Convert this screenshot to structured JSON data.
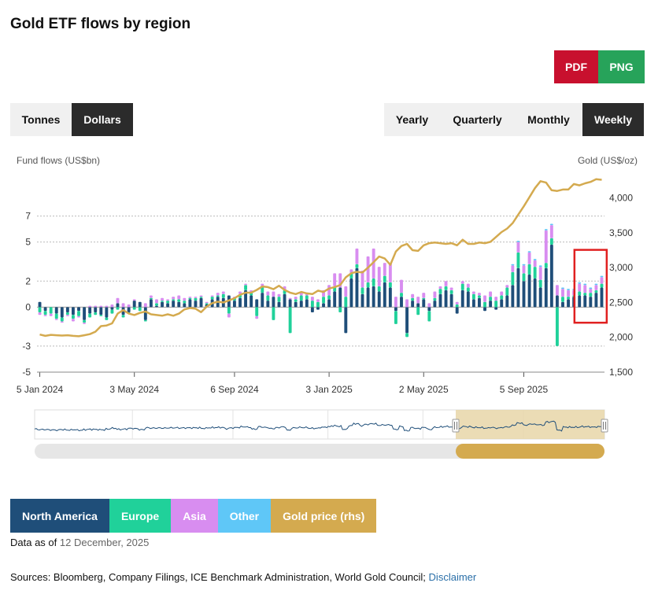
{
  "title": "Gold ETF flows by region",
  "download": {
    "pdf": "PDF",
    "png": "PNG"
  },
  "unit_toggle": {
    "tonnes": "Tonnes",
    "dollars": "Dollars",
    "selected": "Dollars"
  },
  "period_toggle": {
    "yearly": "Yearly",
    "quarterly": "Quarterly",
    "monthly": "Monthly",
    "weekly": "Weekly",
    "selected": "Weekly"
  },
  "legend": {
    "north_america": "North America",
    "europe": "Europe",
    "asia": "Asia",
    "other": "Other",
    "gold_price": "Gold price (rhs)"
  },
  "colors": {
    "north_america": "#1f4e79",
    "europe": "#20d19a",
    "asia": "#d88df0",
    "other": "#5fc7f7",
    "gold_price": "#d4aa4f",
    "highlight": "#e02020"
  },
  "data_as_of": {
    "label": "Data as of",
    "value": "12 December, 2025"
  },
  "sources": {
    "text": "Sources: Bloomberg, Company Filings, ICE Benchmark Administration, World Gold Council;",
    "disclaimer": "Disclaimer"
  },
  "chart_data": {
    "type": "bar",
    "ylabel": "Fund flows (US$bn)",
    "y2label": "Gold (US$/oz)",
    "ylim": [
      -5,
      10
    ],
    "y_ticks": [
      -5,
      -3,
      0,
      2,
      5,
      7
    ],
    "y2lim": [
      1500,
      4300
    ],
    "y2_ticks": [
      "1,500",
      "2,000",
      "2,500",
      "3,000",
      "3,500",
      "4,000"
    ],
    "y2_tick_values": [
      1500,
      2000,
      2500,
      3000,
      3500,
      4000
    ],
    "x_ticks": [
      "5 Jan 2024",
      "3 May 2024",
      "6 Sep 2024",
      "3 Jan 2025",
      "2 May 2025",
      "5 Sep 2025"
    ],
    "x_tick_week_index": [
      0,
      17,
      35,
      52,
      69,
      87
    ],
    "grid": "horizontal",
    "week_count": 102,
    "gold_price": [
      2040,
      2020,
      2035,
      2030,
      2025,
      2030,
      2020,
      2015,
      2030,
      2045,
      2080,
      2160,
      2170,
      2200,
      2340,
      2390,
      2340,
      2320,
      2350,
      2370,
      2330,
      2320,
      2310,
      2330,
      2310,
      2340,
      2400,
      2420,
      2410,
      2360,
      2440,
      2490,
      2510,
      2500,
      2530,
      2560,
      2610,
      2640,
      2640,
      2680,
      2730,
      2720,
      2690,
      2740,
      2680,
      2640,
      2620,
      2650,
      2630,
      2620,
      2670,
      2650,
      2700,
      2720,
      2750,
      2860,
      2920,
      2940,
      2930,
      3000,
      3080,
      3160,
      3130,
      3040,
      3230,
      3310,
      3340,
      3250,
      3240,
      3320,
      3350,
      3360,
      3350,
      3340,
      3350,
      3320,
      3400,
      3340,
      3340,
      3360,
      3350,
      3370,
      3440,
      3510,
      3560,
      3640,
      3760,
      3880,
      4010,
      4140,
      4240,
      4220,
      4110,
      4100,
      4120,
      4120,
      4200,
      4180,
      4210,
      4230,
      4270,
      4260
    ],
    "series": [
      {
        "name": "North America",
        "values": [
          0.4,
          -0.3,
          0.0,
          -0.5,
          -0.8,
          -0.4,
          -0.6,
          -0.3,
          -1.0,
          -0.5,
          -0.4,
          -0.6,
          -0.8,
          -0.2,
          0.3,
          -0.6,
          -0.4,
          0.5,
          0.4,
          -1.0,
          0.6,
          0.1,
          0.4,
          0.3,
          0.5,
          0.4,
          0.3,
          0.6,
          0.5,
          0.7,
          0.2,
          0.6,
          0.8,
          0.7,
          0.9,
          0.5,
          0.7,
          1.3,
          0.9,
          0.6,
          1.1,
          0.5,
          0.8,
          0.4,
          1.0,
          0.6,
          0.4,
          0.5,
          0.6,
          -0.4,
          -0.2,
          0.3,
          0.6,
          1.2,
          1.5,
          -2.0,
          2.2,
          3.0,
          1.0,
          1.5,
          1.6,
          1.2,
          1.9,
          1.5,
          -0.3,
          0.8,
          -2.0,
          0.5,
          0.3,
          0.6,
          -0.3,
          0.5,
          1.0,
          1.3,
          1.0,
          -0.5,
          1.3,
          1.2,
          0.6,
          0.7,
          -0.3,
          0.5,
          -0.2,
          0.6,
          0.9,
          1.7,
          3.0,
          2.0,
          2.5,
          2.2,
          1.5,
          3.0,
          4.8,
          0.9,
          0.4,
          0.6,
          0.8,
          0.9,
          0.9,
          0.8,
          1.1,
          1.5
        ]
      },
      {
        "name": "Europe",
        "values": [
          -0.4,
          -0.3,
          -0.5,
          -0.4,
          -0.3,
          -0.2,
          -0.3,
          -0.4,
          -0.2,
          -0.3,
          -0.2,
          -0.1,
          -0.2,
          -0.3,
          -0.2,
          -0.2,
          -0.1,
          -0.2,
          -0.3,
          -0.1,
          0.1,
          0.2,
          0.1,
          0.2,
          0.1,
          0.2,
          0.2,
          0.1,
          0.2,
          0.1,
          0.1,
          0.2,
          0.1,
          0.3,
          -0.5,
          0.2,
          0.3,
          0.4,
          0.2,
          -0.7,
          0.5,
          0.4,
          -1.0,
          0.4,
          0.3,
          -2.0,
          0.2,
          0.4,
          0.3,
          0.5,
          0.4,
          0.5,
          0.3,
          0.4,
          -0.4,
          0.8,
          0.4,
          0.3,
          0.5,
          0.4,
          0.6,
          0.4,
          0.5,
          0.4,
          -1.0,
          0.3,
          -0.3,
          0.2,
          -0.6,
          0.1,
          -0.8,
          0.2,
          0.4,
          0.3,
          0.3,
          0.2,
          0.5,
          0.3,
          0.4,
          0.2,
          0.4,
          0.3,
          0.5,
          0.3,
          0.6,
          1.0,
          1.2,
          0.6,
          0.8,
          0.9,
          0.6,
          0.4,
          0.5,
          -3.0,
          0.4,
          0.2,
          0.1,
          0.3,
          0.2,
          0.3,
          0.2,
          0.3
        ]
      },
      {
        "name": "Asia",
        "values": [
          -0.2,
          -0.1,
          -0.2,
          -0.1,
          -0.1,
          -0.1,
          -0.2,
          -0.1,
          -0.1,
          0.1,
          0.1,
          0.1,
          0.1,
          0.2,
          0.4,
          0.3,
          0.2,
          0.1,
          0.0,
          0.3,
          0.2,
          0.3,
          0.2,
          0.1,
          0.2,
          0.3,
          0.2,
          0.1,
          0.1,
          0.1,
          0.1,
          0.1,
          0.2,
          0.2,
          -0.3,
          0.1,
          0.2,
          0.1,
          0.2,
          -0.2,
          0.2,
          0.3,
          0.4,
          0.2,
          0.3,
          0.1,
          0.2,
          0.3,
          0.2,
          0.3,
          0.2,
          0.5,
          0.8,
          1.0,
          1.1,
          0.8,
          0.3,
          1.2,
          1.3,
          2.0,
          2.3,
          1.5,
          1.0,
          1.5,
          0.8,
          1.0,
          0.6,
          0.3,
          0.5,
          0.4,
          0.3,
          0.5,
          0.2,
          0.4,
          0.2,
          0.2,
          0.2,
          0.3,
          0.2,
          0.2,
          0.5,
          0.4,
          0.3,
          0.3,
          0.2,
          0.5,
          0.8,
          0.6,
          0.9,
          0.5,
          1.0,
          2.5,
          1.0,
          0.8,
          0.6,
          0.5,
          0.4,
          0.6,
          0.6,
          0.3,
          0.4,
          0.5
        ]
      },
      {
        "name": "Other",
        "values": [
          0.0,
          0.0,
          0.0,
          0.0,
          0.0,
          0.0,
          0.0,
          0.0,
          0.0,
          0.0,
          0.0,
          0.0,
          0.0,
          0.0,
          0.0,
          0.0,
          0.0,
          0.0,
          0.0,
          0.0,
          0.0,
          0.0,
          0.0,
          0.0,
          0.0,
          0.0,
          0.0,
          0.0,
          0.0,
          0.0,
          0.0,
          0.0,
          0.0,
          0.0,
          0.0,
          0.0,
          0.0,
          0.0,
          0.0,
          0.0,
          0.0,
          0.0,
          0.0,
          0.0,
          0.0,
          0.0,
          0.0,
          0.0,
          0.0,
          0.0,
          0.0,
          0.0,
          0.0,
          0.0,
          0.0,
          0.0,
          0.0,
          0.0,
          0.0,
          0.0,
          0.0,
          0.0,
          0.0,
          0.0,
          0.0,
          0.0,
          0.0,
          0.0,
          0.0,
          0.0,
          0.0,
          0.0,
          0.0,
          0.0,
          0.0,
          0.0,
          0.0,
          0.0,
          0.0,
          0.0,
          0.0,
          0.0,
          0.0,
          0.0,
          0.0,
          0.1,
          0.1,
          0.1,
          0.1,
          0.1,
          0.1,
          0.1,
          0.1,
          0.0,
          0.1,
          0.1,
          0.1,
          0.1,
          0.1,
          0.1,
          0.1,
          0.1
        ]
      }
    ],
    "highlight_weeks": [
      97,
      101
    ],
    "navigator_window_weeks": [
      76,
      101
    ]
  }
}
